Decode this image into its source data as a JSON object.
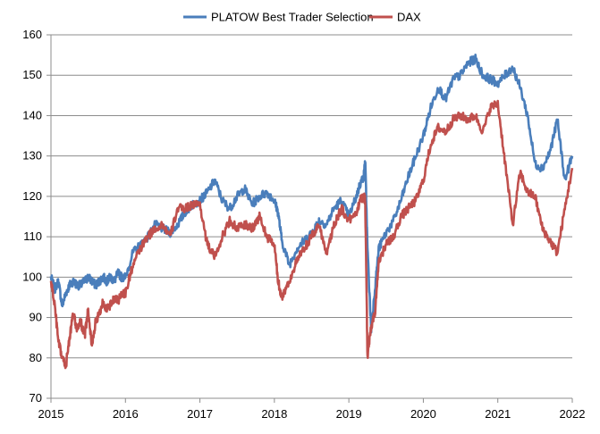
{
  "chart_data": {
    "type": "line",
    "title": "",
    "xlabel": "",
    "ylabel": "",
    "xlim": [
      2015,
      2022
    ],
    "ylim": [
      70,
      160
    ],
    "x_ticks": [
      "2015",
      "2016",
      "2017",
      "2018",
      "2019",
      "2020",
      "2021",
      "2022"
    ],
    "y_ticks": [
      "70",
      "80",
      "90",
      "100",
      "110",
      "120",
      "130",
      "140",
      "150",
      "160"
    ],
    "grid": "horizontal",
    "legend": "top-center",
    "series": [
      {
        "name": "PLATOW Best Trader Selection",
        "color": "#4a7ebb",
        "x": [
          2015.0,
          2015.05,
          2015.1,
          2015.15,
          2015.2,
          2015.25,
          2015.3,
          2015.35,
          2015.4,
          2015.45,
          2015.5,
          2015.55,
          2015.6,
          2015.65,
          2015.7,
          2015.75,
          2015.8,
          2015.85,
          2015.9,
          2015.95,
          2016.0,
          2016.1,
          2016.2,
          2016.3,
          2016.4,
          2016.5,
          2016.6,
          2016.7,
          2016.8,
          2016.9,
          2017.0,
          2017.1,
          2017.2,
          2017.3,
          2017.4,
          2017.5,
          2017.6,
          2017.7,
          2017.8,
          2017.9,
          2018.0,
          2018.05,
          2018.1,
          2018.2,
          2018.3,
          2018.4,
          2018.5,
          2018.6,
          2018.7,
          2018.8,
          2018.9,
          2019.0,
          2019.1,
          2019.15,
          2019.2,
          2019.22,
          2019.25,
          2019.3,
          2019.35,
          2019.4,
          2019.5,
          2019.6,
          2019.7,
          2019.8,
          2019.9,
          2020.0,
          2020.1,
          2020.2,
          2020.3,
          2020.4,
          2020.5,
          2020.6,
          2020.7,
          2020.8,
          2020.9,
          2021.0,
          2021.1,
          2021.2,
          2021.3,
          2021.4,
          2021.5,
          2021.6,
          2021.7,
          2021.8,
          2021.9,
          2022.0
        ],
        "y": [
          100,
          97,
          99,
          93,
          96,
          98,
          99,
          98,
          98,
          99,
          100,
          99,
          98,
          99,
          100,
          99,
          100,
          99,
          101,
          100,
          100,
          106,
          108,
          110,
          113,
          112,
          111,
          113,
          116,
          118,
          119,
          121,
          124,
          119,
          117,
          120,
          122,
          118,
          120,
          121,
          119,
          116,
          109,
          103,
          107,
          109,
          111,
          114,
          113,
          117,
          119,
          115,
          120,
          123,
          125,
          129,
          107,
          87,
          97,
          107,
          111,
          114,
          119,
          125,
          130,
          135,
          142,
          147,
          144,
          149,
          150,
          153,
          154,
          150,
          149,
          148,
          150,
          152,
          147,
          140,
          128,
          127,
          131,
          139,
          124,
          130
        ],
        "x_display": [
          2015.0,
          2015.05,
          2015.1,
          2015.15,
          2015.2,
          2015.25,
          2015.3,
          2015.35,
          2015.4,
          2015.45,
          2015.5,
          2015.55,
          2015.6,
          2015.65,
          2015.7,
          2015.75,
          2015.8,
          2015.85,
          2015.9,
          2015.95,
          2016.0,
          2016.1,
          2016.2,
          2016.3,
          2016.4,
          2016.5,
          2016.6,
          2016.7,
          2016.8,
          2016.9,
          2017.0,
          2017.1,
          2017.2,
          2017.3,
          2017.4,
          2017.5,
          2017.6,
          2017.7,
          2017.8,
          2017.9,
          2018.0,
          2018.05,
          2018.1,
          2018.2,
          2018.3,
          2018.4,
          2018.5,
          2018.6,
          2018.7,
          2018.8,
          2018.9,
          2019.0,
          2019.1,
          2019.15,
          2019.2,
          2019.22,
          2019.25,
          2019.3,
          2019.35,
          2019.4,
          2019.5,
          2019.6,
          2019.7,
          2019.8,
          2019.9,
          2020.0,
          2020.1,
          2020.2,
          2020.3,
          2020.4,
          2020.5,
          2020.6,
          2020.7,
          2020.8,
          2020.9,
          2021.0,
          2021.1,
          2021.2,
          2021.3,
          2021.4,
          2021.5,
          2021.6,
          2021.7,
          2021.8,
          2021.9,
          2022.0
        ]
      },
      {
        "name": "DAX",
        "color": "#c0504d",
        "x": [
          2015.0,
          2015.05,
          2015.1,
          2015.15,
          2015.2,
          2015.25,
          2015.3,
          2015.35,
          2015.4,
          2015.45,
          2015.5,
          2015.55,
          2015.6,
          2015.65,
          2015.7,
          2015.75,
          2015.8,
          2015.85,
          2015.9,
          2015.95,
          2016.0,
          2016.1,
          2016.2,
          2016.3,
          2016.4,
          2016.5,
          2016.6,
          2016.7,
          2016.8,
          2016.9,
          2017.0,
          2017.1,
          2017.2,
          2017.3,
          2017.4,
          2017.5,
          2017.6,
          2017.7,
          2017.8,
          2017.9,
          2018.0,
          2018.05,
          2018.1,
          2018.2,
          2018.3,
          2018.4,
          2018.5,
          2018.6,
          2018.7,
          2018.8,
          2018.9,
          2019.0,
          2019.1,
          2019.15,
          2019.2,
          2019.22,
          2019.25,
          2019.3,
          2019.35,
          2019.4,
          2019.5,
          2019.6,
          2019.7,
          2019.8,
          2019.9,
          2020.0,
          2020.1,
          2020.2,
          2020.3,
          2020.4,
          2020.5,
          2020.6,
          2020.7,
          2020.8,
          2020.9,
          2021.0,
          2021.1,
          2021.2,
          2021.3,
          2021.4,
          2021.5,
          2021.6,
          2021.7,
          2021.8,
          2021.9,
          2022.0
        ],
        "y": [
          99,
          93,
          84,
          80,
          78,
          85,
          91,
          87,
          89,
          85,
          92,
          83,
          89,
          91,
          94,
          92,
          93,
          95,
          94,
          96,
          96,
          103,
          107,
          110,
          112,
          113,
          110,
          117,
          117,
          118,
          118,
          108,
          105,
          110,
          114,
          112,
          113,
          112,
          115,
          110,
          108,
          99,
          95,
          99,
          104,
          107,
          110,
          113,
          106,
          113,
          117,
          114,
          116,
          119,
          120,
          119,
          80,
          88,
          91,
          104,
          108,
          110,
          115,
          117,
          119,
          124,
          133,
          137,
          136,
          139,
          140,
          139,
          140,
          136,
          142,
          143,
          128,
          113,
          126,
          121,
          120,
          112,
          109,
          106,
          117,
          127
        ],
        "x_display": [
          2015.0,
          2015.05,
          2015.1,
          2015.15,
          2015.2,
          2015.25,
          2015.3,
          2015.35,
          2015.4,
          2015.45,
          2015.5,
          2015.55,
          2015.6,
          2015.65,
          2015.7,
          2015.75,
          2015.8,
          2015.85,
          2015.9,
          2015.95,
          2016.0,
          2016.1,
          2016.2,
          2016.3,
          2016.4,
          2016.5,
          2016.6,
          2016.7,
          2016.8,
          2016.9,
          2017.0,
          2017.1,
          2017.2,
          2017.3,
          2017.4,
          2017.5,
          2017.6,
          2017.7,
          2017.8,
          2017.9,
          2018.0,
          2018.05,
          2018.1,
          2018.2,
          2018.3,
          2018.4,
          2018.5,
          2018.6,
          2018.7,
          2018.8,
          2018.9,
          2019.0,
          2019.1,
          2019.15,
          2019.2,
          2019.22,
          2019.25,
          2019.3,
          2019.35,
          2019.4,
          2019.5,
          2019.6,
          2019.7,
          2019.8,
          2019.9,
          2020.0,
          2020.1,
          2020.2,
          2020.3,
          2020.4,
          2020.5,
          2020.6,
          2020.7,
          2020.8,
          2020.9,
          2021.0,
          2021.1,
          2021.2,
          2021.3,
          2021.4,
          2021.5,
          2021.6,
          2021.7,
          2021.8,
          2021.9,
          2022.0
        ]
      }
    ]
  }
}
